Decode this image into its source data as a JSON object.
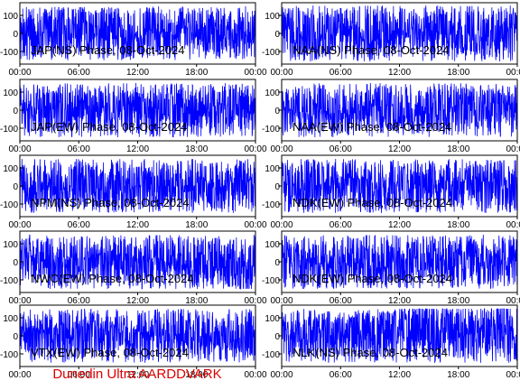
{
  "footer_text": "Dunedin Ultra AARDDVARK",
  "colors": {
    "trace": "#0000ff",
    "axes": "#000000",
    "footer": "#dd0000",
    "background": "#ffffff"
  },
  "chart_data": [
    {
      "type": "line",
      "title": "JAP(NS) Phase, 08-Oct-2024",
      "x_ticks": [
        "00:00",
        "06:00",
        "12:00",
        "18:00",
        "00:00"
      ],
      "y_ticks": [
        "100",
        "0",
        "-100"
      ],
      "ylim": [
        -170,
        170
      ],
      "series": [
        {
          "color": "#0000ff",
          "amplitude": 150,
          "density": 0.95
        }
      ]
    },
    {
      "type": "line",
      "title": "NAA(NS) Phase, 08-Oct-2024",
      "x_ticks": [
        "00:00",
        "06:00",
        "12:00",
        "18:00",
        "00:00"
      ],
      "y_ticks": [
        "100",
        "0",
        "-100"
      ],
      "ylim": [
        -170,
        170
      ],
      "series": [
        {
          "color": "#0000ff",
          "amplitude": 155,
          "density": 0.97
        }
      ]
    },
    {
      "type": "line",
      "title": "JAP(EW) Phase, 08-Oct-2024",
      "x_ticks": [
        "00:00",
        "06:00",
        "12:00",
        "18:00",
        "00:00"
      ],
      "y_ticks": [
        "100",
        "0",
        "-100"
      ],
      "ylim": [
        -170,
        170
      ],
      "series": [
        {
          "color": "#0000ff",
          "amplitude": 150,
          "density": 0.96
        }
      ]
    },
    {
      "type": "line",
      "title": "NAA(EW) Phase, 08-Oct-2024",
      "x_ticks": [
        "00:00",
        "06:00",
        "12:00",
        "18:00",
        "00:00"
      ],
      "y_ticks": [
        "100",
        "0",
        "-100"
      ],
      "ylim": [
        -170,
        170
      ],
      "series": [
        {
          "color": "#0000ff",
          "amplitude": 150,
          "density": 0.95
        }
      ]
    },
    {
      "type": "line",
      "title": "NPM(NS) Phase, 08-Oct-2024",
      "x_ticks": [
        "00:00",
        "06:00",
        "12:00",
        "18:00",
        "00:00"
      ],
      "y_ticks": [
        "100",
        "0",
        "-100"
      ],
      "ylim": [
        -170,
        170
      ],
      "series": [
        {
          "color": "#0000ff",
          "amplitude": 150,
          "density": 0.94
        }
      ]
    },
    {
      "type": "line",
      "title": "NDK(EW) Phase, 08-Oct-2024",
      "x_ticks": [
        "00:00",
        "06:00",
        "12:00",
        "18:00",
        "00:00"
      ],
      "y_ticks": [
        "100",
        "0",
        "-100"
      ],
      "ylim": [
        -170,
        170
      ],
      "series": [
        {
          "color": "#0000ff",
          "amplitude": 150,
          "density": 0.93
        }
      ]
    },
    {
      "type": "line",
      "title": "NWC(EW) Phase, 08-Oct-2024",
      "x_ticks": [
        "00:00",
        "06:00",
        "12:00",
        "18:00",
        "00:00"
      ],
      "y_ticks": [
        "100",
        "0",
        "-100"
      ],
      "ylim": [
        -170,
        170
      ],
      "series": [
        {
          "color": "#0000ff",
          "amplitude": 150,
          "density": 0.92
        }
      ]
    },
    {
      "type": "line",
      "title": "NDK(EW) Phase, 08-Oct-2024",
      "x_ticks": [
        "00:00",
        "06:00",
        "12:00",
        "18:00",
        "00:00"
      ],
      "y_ticks": [
        "100",
        "0",
        "-100"
      ],
      "ylim": [
        -170,
        170
      ],
      "series": [
        {
          "color": "#0000ff",
          "amplitude": 150,
          "density": 0.93
        }
      ]
    },
    {
      "type": "line",
      "title": "VTX(EW) Phase, 08-Oct-2024",
      "x_ticks": [
        "00:00",
        "06:00",
        "12:00",
        "18:00",
        "00:00"
      ],
      "y_ticks": [
        "100",
        "0",
        "-100"
      ],
      "ylim": [
        -170,
        170
      ],
      "series": [
        {
          "color": "#0000ff",
          "amplitude": 150,
          "density": 0.85
        }
      ]
    },
    {
      "type": "line",
      "title": "NLK(NS) Phase, 08-Oct-2024",
      "x_ticks": [
        "00:00",
        "06:00",
        "12:00",
        "18:00",
        "00:00"
      ],
      "y_ticks": [
        "100",
        "0",
        "-100"
      ],
      "ylim": [
        -170,
        170
      ],
      "series": [
        {
          "color": "#0000ff",
          "amplitude": 150,
          "density": 0.86
        }
      ]
    }
  ]
}
